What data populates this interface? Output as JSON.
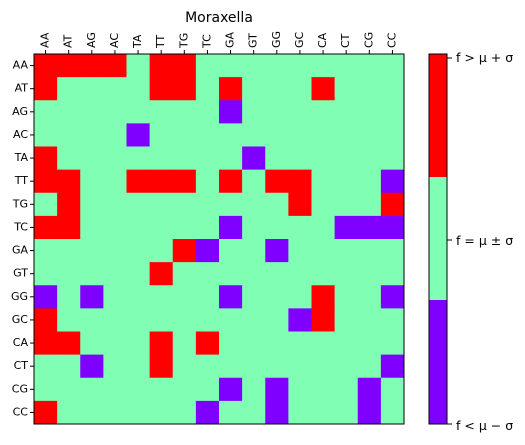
{
  "chart_data": {
    "type": "heatmap",
    "title": "Moraxella",
    "x_labels": [
      "AA",
      "AT",
      "AG",
      "AC",
      "TA",
      "TT",
      "TG",
      "TC",
      "GA",
      "GT",
      "GG",
      "GC",
      "CA",
      "CT",
      "CG",
      "CC"
    ],
    "y_labels": [
      "AA",
      "AT",
      "AG",
      "AC",
      "TA",
      "TT",
      "TG",
      "TC",
      "GA",
      "GT",
      "GG",
      "GC",
      "CA",
      "CT",
      "CG",
      "CC"
    ],
    "legend": "right",
    "colors": {
      "low": "#8000ff",
      "mid": "#80ffb4",
      "high": "#ff0000"
    },
    "colorbar": {
      "labels": {
        "high": "f > μ + σ",
        "mid": "f = μ ± σ",
        "low": "f < μ − σ"
      }
    },
    "matrix": [
      [
        1,
        1,
        1,
        1,
        0,
        1,
        1,
        0,
        0,
        0,
        0,
        0,
        0,
        0,
        0,
        0
      ],
      [
        1,
        0,
        0,
        0,
        0,
        1,
        1,
        0,
        1,
        0,
        0,
        0,
        1,
        0,
        0,
        0
      ],
      [
        0,
        0,
        0,
        0,
        0,
        0,
        0,
        0,
        -1,
        0,
        0,
        0,
        0,
        0,
        0,
        0
      ],
      [
        0,
        0,
        0,
        0,
        -1,
        0,
        0,
        0,
        0,
        0,
        0,
        0,
        0,
        0,
        0,
        0
      ],
      [
        1,
        0,
        0,
        0,
        0,
        0,
        0,
        0,
        0,
        -1,
        0,
        0,
        0,
        0,
        0,
        0
      ],
      [
        1,
        1,
        0,
        0,
        1,
        1,
        1,
        0,
        1,
        0,
        1,
        1,
        0,
        0,
        0,
        -1
      ],
      [
        0,
        1,
        0,
        0,
        0,
        0,
        0,
        0,
        0,
        0,
        0,
        1,
        0,
        0,
        0,
        1
      ],
      [
        1,
        1,
        0,
        0,
        0,
        0,
        0,
        0,
        -1,
        0,
        0,
        0,
        0,
        -1,
        -1,
        -1
      ],
      [
        0,
        0,
        0,
        0,
        0,
        0,
        1,
        -1,
        0,
        0,
        -1,
        0,
        0,
        0,
        0,
        0
      ],
      [
        0,
        0,
        0,
        0,
        0,
        1,
        0,
        0,
        0,
        0,
        0,
        0,
        0,
        0,
        0,
        0
      ],
      [
        -1,
        0,
        -1,
        0,
        0,
        0,
        0,
        0,
        -1,
        0,
        0,
        0,
        1,
        0,
        0,
        -1
      ],
      [
        1,
        0,
        0,
        0,
        0,
        0,
        0,
        0,
        0,
        0,
        0,
        -1,
        1,
        0,
        0,
        0
      ],
      [
        1,
        1,
        0,
        0,
        0,
        1,
        0,
        1,
        0,
        0,
        0,
        0,
        0,
        0,
        0,
        0
      ],
      [
        0,
        0,
        -1,
        0,
        0,
        1,
        0,
        0,
        0,
        0,
        0,
        0,
        0,
        0,
        0,
        -1
      ],
      [
        0,
        0,
        0,
        0,
        0,
        0,
        0,
        0,
        -1,
        0,
        -1,
        0,
        0,
        0,
        -1,
        0
      ],
      [
        1,
        0,
        0,
        0,
        0,
        0,
        0,
        -1,
        0,
        0,
        -1,
        0,
        0,
        0,
        -1,
        0
      ]
    ]
  }
}
